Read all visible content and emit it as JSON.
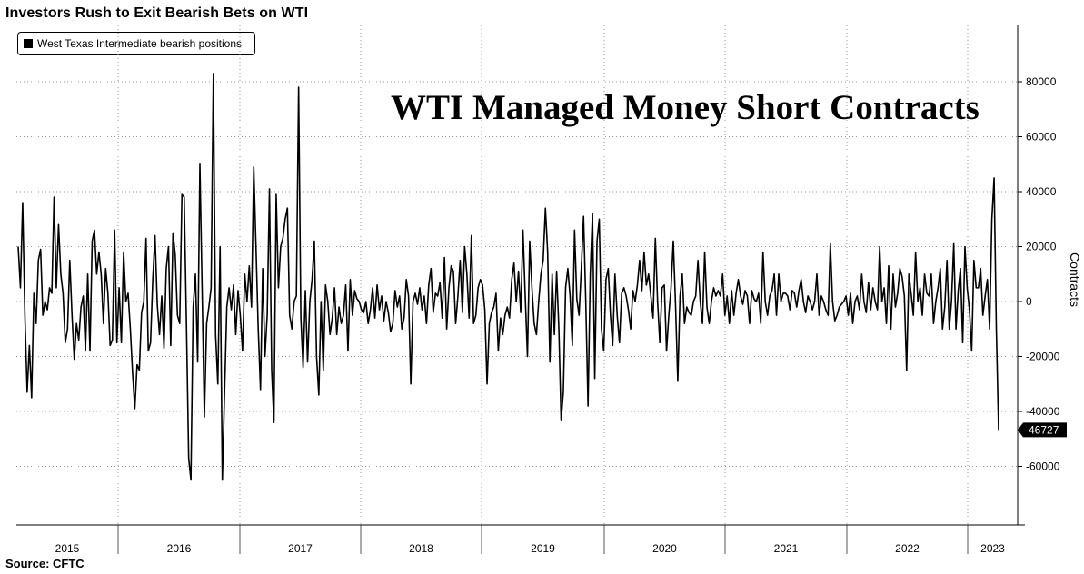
{
  "title": "Investors Rush to Exit Bearish Bets on WTI",
  "overlay_title": "WTI Managed Money Short Contracts",
  "source": "Source: CFTC",
  "legend": {
    "label": "West Texas Intermediate bearish positions"
  },
  "chart_data": {
    "type": "line",
    "title": "Investors Rush to Exit Bearish Bets on WTI",
    "ylabel": "Contracts",
    "xlabel": "",
    "ylim": [
      -80000,
      90000
    ],
    "y_ticks": [
      80000,
      60000,
      40000,
      20000,
      0,
      -20000,
      -40000,
      -60000
    ],
    "y_tick_labels": [
      "80000",
      "60000",
      "40000",
      "20000",
      "0",
      "-20000",
      "-40000",
      "-60000"
    ],
    "x_categories": [
      "2015",
      "2016",
      "2017",
      "2018",
      "2019",
      "2020",
      "2021",
      "2022",
      "2023"
    ],
    "grid": true,
    "legend_position": "top-left",
    "last_value": -46727,
    "last_value_label": "-46727",
    "series": [
      {
        "name": "West Texas Intermediate bearish positions",
        "color": "#000000",
        "start": "2015-03",
        "frequency": "weekly",
        "values": [
          20000,
          5000,
          36000,
          -5000,
          -33000,
          -16000,
          -35000,
          3000,
          -8000,
          15000,
          19000,
          -5000,
          0,
          -3000,
          5000,
          3000,
          38000,
          5000,
          28000,
          10000,
          3000,
          -15000,
          -10000,
          15000,
          -5000,
          -21000,
          -8000,
          -14000,
          -2000,
          2000,
          -18000,
          10000,
          -18000,
          22000,
          26000,
          10000,
          18000,
          10000,
          -8000,
          12000,
          3000,
          -16000,
          -14000,
          26000,
          -15000,
          5000,
          -15000,
          18000,
          0,
          3000,
          -10000,
          -26000,
          -39000,
          -23000,
          -25000,
          -4000,
          0,
          23000,
          -18000,
          -15000,
          8000,
          24000,
          -1000,
          -12000,
          2000,
          -17000,
          12000,
          20000,
          -16000,
          25000,
          17000,
          -5000,
          -8000,
          39000,
          38000,
          -8000,
          -57000,
          -65000,
          -2000,
          10000,
          -22000,
          50000,
          4000,
          -42000,
          -8000,
          -2000,
          5000,
          83000,
          -12000,
          -30000,
          20000,
          -65000,
          -33000,
          -2000,
          5000,
          -3000,
          6000,
          -12000,
          4000,
          -5000,
          -18000,
          10000,
          0,
          13000,
          -2000,
          49000,
          20000,
          -10000,
          -32000,
          12000,
          -20000,
          -5000,
          41000,
          -25000,
          -44000,
          39000,
          5000,
          20000,
          23000,
          30000,
          34000,
          -5000,
          -10000,
          0,
          2000,
          78000,
          -6000,
          -24000,
          4000,
          -22000,
          0,
          8000,
          22000,
          -20000,
          -34000,
          0,
          -25000,
          6000,
          0,
          -12000,
          -6000,
          5000,
          -12000,
          -2000,
          -8000,
          -5000,
          6000,
          -18000,
          8000,
          -5000,
          4000,
          1000,
          0,
          -3000,
          -4000,
          0,
          -8000,
          -3000,
          5000,
          -6000,
          6000,
          -3000,
          2000,
          -7000,
          0,
          -4000,
          -11000,
          -8000,
          4000,
          -2000,
          2000,
          -10000,
          -6000,
          8000,
          2000,
          -30000,
          0,
          3000,
          -1000,
          5000,
          -3000,
          2000,
          -8000,
          6000,
          12000,
          -4000,
          3000,
          2000,
          7000,
          -6000,
          16000,
          -10000,
          5000,
          13000,
          11000,
          -8000,
          2000,
          15000,
          -4000,
          20000,
          10000,
          -6000,
          24000,
          -8000,
          -5000,
          5000,
          8000,
          6000,
          -3000,
          -30000,
          -8000,
          -4000,
          -2000,
          3000,
          -18000,
          -6000,
          -12000,
          -5000,
          -2000,
          -6000,
          8000,
          14000,
          0,
          11000,
          -4000,
          26000,
          2000,
          -20000,
          22000,
          5000,
          -8000,
          -12000,
          0,
          10000,
          15000,
          34000,
          18000,
          -22000,
          10000,
          -12000,
          11000,
          -10000,
          -43000,
          -33000,
          5000,
          12000,
          2000,
          -16000,
          26000,
          1000,
          -5000,
          12000,
          31000,
          0,
          -38000,
          10000,
          32000,
          -28000,
          22000,
          30000,
          -10000,
          -18000,
          8000,
          12000,
          -5000,
          -16000,
          10000,
          -5000,
          -15000,
          3000,
          5000,
          2000,
          -3000,
          -10000,
          4000,
          0,
          6000,
          15000,
          4000,
          18000,
          6000,
          10000,
          2000,
          -6000,
          23000,
          0,
          -15000,
          5000,
          6000,
          -18000,
          -5000,
          5000,
          22000,
          -1000,
          -29000,
          2000,
          10000,
          -8000,
          -2000,
          -4000,
          -5000,
          0,
          2000,
          15000,
          0,
          -8000,
          18000,
          -2000,
          -8000,
          0,
          5000,
          2000,
          4000,
          2000,
          10000,
          -5000,
          2000,
          -8000,
          4000,
          -5000,
          3000,
          8000,
          2000,
          -1000,
          4000,
          2000,
          -8000,
          4000,
          1000,
          0,
          3000,
          -8000,
          18000,
          0,
          -5000,
          2000,
          4000,
          10000,
          -5000,
          10000,
          0,
          3000,
          3000,
          2000,
          -3000,
          4000,
          3000,
          -2000,
          4000,
          8000,
          0,
          -4000,
          2000,
          0,
          -3000,
          0,
          10000,
          -5000,
          2000,
          0,
          -3000,
          -5000,
          21000,
          0,
          -7000,
          -5000,
          -2000,
          -1000,
          0,
          2000,
          -5000,
          3000,
          -8000,
          0,
          2000,
          -3000,
          10000,
          0,
          -4000,
          7000,
          -3000,
          5000,
          0,
          -3000,
          20000,
          0,
          5000,
          -8000,
          13000,
          -10000,
          10000,
          -2000,
          3000,
          12000,
          9000,
          2000,
          -25000,
          10000,
          3000,
          -5000,
          18000,
          0,
          5000,
          -5000,
          10000,
          3000,
          2000,
          10000,
          -8000,
          0,
          5000,
          12000,
          -10000,
          -2000,
          15000,
          -10000,
          0,
          21000,
          -10000,
          4000,
          12000,
          -15000,
          20000,
          5000,
          -3000,
          -18000,
          15000,
          5000,
          5000,
          12000,
          -5000,
          2000,
          8000,
          -10000,
          30000,
          45000,
          -10000,
          -46727
        ]
      }
    ]
  }
}
